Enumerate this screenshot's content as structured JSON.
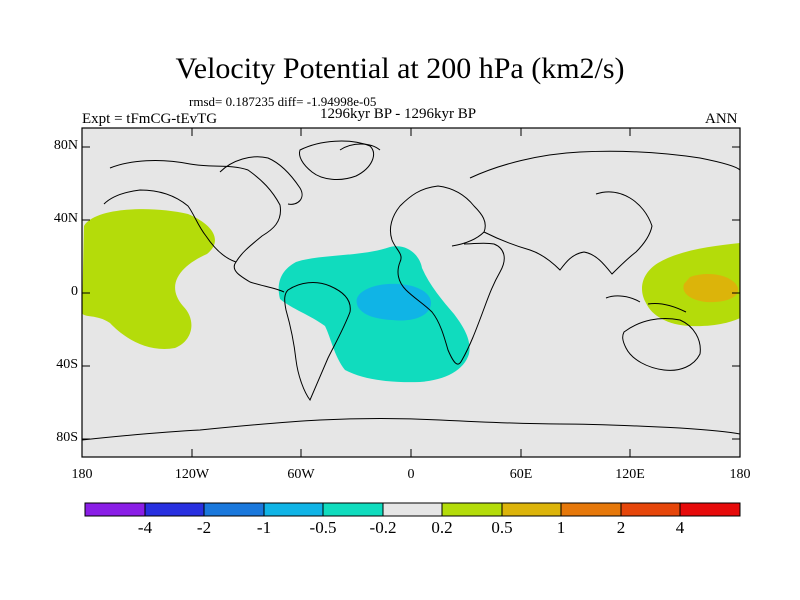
{
  "title": "Velocity Potential at 200 hPa (km2/s)",
  "stats": "rmsd= 0.187235 diff= -1.94998e-05",
  "expt": "Expt = tFmCG-tEvTG",
  "period": "1296kyr BP - 1296kyr BP",
  "season": "ANN",
  "y_ticks": [
    "80N",
    "40N",
    "0",
    "40S",
    "80S"
  ],
  "x_ticks": [
    "180",
    "120W",
    "60W",
    "0",
    "60E",
    "120E",
    "180"
  ],
  "colorbar": {
    "labels": [
      "-4",
      "-2",
      "-1",
      "-0.5",
      "-0.2",
      "0.2",
      "0.5",
      "1",
      "2",
      "4"
    ],
    "colors": [
      "#8a1ee6",
      "#2830e0",
      "#1a78dc",
      "#10b4e6",
      "#10dcbe",
      "#e6e6e6",
      "#b4dc0a",
      "#dcb40a",
      "#e6780a",
      "#e6460a",
      "#e60a0a"
    ]
  },
  "colors": {
    "land_sea_background": "#e6e6e6",
    "positive_anomaly": "#b4dc0a",
    "negative_anomaly": "#10dcbe",
    "strong_negative": "#10b4e6",
    "strong_positive": "#dcb40a"
  }
}
